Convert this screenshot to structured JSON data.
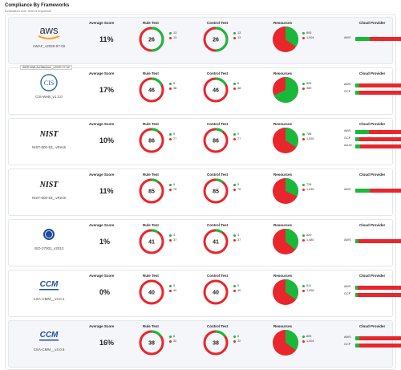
{
  "header": {
    "title": "Compliance By Frameworks",
    "subtitle": "Evaluation over time is important"
  },
  "columns": {
    "avg": "Average Score",
    "rule": "Rule Test",
    "control": "Control Test",
    "resources": "Resources",
    "cloud": "Cloud Provider"
  },
  "tooltip": "AWS-Well-Architected-_v2020-07-02",
  "colors": {
    "pass": "#1ab83a",
    "fail": "#e8262b"
  },
  "frameworks": [
    {
      "logo": "aws",
      "name": "AWAF_v2020-07-02",
      "score": "11%",
      "rule": {
        "total": "26",
        "pass": "13",
        "fail": "13"
      },
      "control": {
        "total": "26",
        "pass": "13",
        "fail": "13"
      },
      "resources": {
        "pass": "805",
        "fail": "1,504",
        "pass_frac": 0.35
      },
      "clouds": [
        {
          "name": "AWS",
          "pass_frac": 0.3
        }
      ]
    },
    {
      "logo": "CIS",
      "name": "CIS-WeB_v1.3.0",
      "score": "17%",
      "rule": {
        "total": "46",
        "pass": "8",
        "fail": "38"
      },
      "control": {
        "total": "46",
        "pass": "8",
        "fail": "38"
      },
      "resources": {
        "pass": "826",
        "fail": "380",
        "pass_frac": 0.68
      },
      "clouds": [
        {
          "name": "AWS",
          "pass_frac": 0.08
        },
        {
          "name": "GCP",
          "pass_frac": 0.08
        }
      ]
    },
    {
      "logo": "NIST",
      "name": "NIST-800-53_.vRev5",
      "score": "10%",
      "rule": {
        "total": "86",
        "pass": "9",
        "fail": "77"
      },
      "control": {
        "total": "86",
        "pass": "9",
        "fail": "77"
      },
      "resources": {
        "pass": "788",
        "fail": "1,525",
        "pass_frac": 0.34
      },
      "clouds": [
        {
          "name": "AWS",
          "pass_frac": 0.28
        },
        {
          "name": "GCP",
          "pass_frac": 0.08
        },
        {
          "name": "Azure",
          "pass_frac": 0.1
        }
      ]
    },
    {
      "logo": "NIST",
      "name": "NIST-800-53_.vRev5",
      "score": "11%",
      "rule": {
        "total": "85",
        "pass": "9",
        "fail": "76"
      },
      "control": {
        "total": "85",
        "pass": "9",
        "fail": "76"
      },
      "resources": {
        "pass": "728",
        "fail": "1,535",
        "pass_frac": 0.32
      },
      "clouds": [
        {
          "name": "AWS",
          "pass_frac": 0.3
        }
      ]
    },
    {
      "logo": "ISO",
      "name": "ISO-27001_v2013",
      "score": "1%",
      "rule": {
        "total": "41",
        "pass": "4",
        "fail": "37"
      },
      "control": {
        "total": "41",
        "pass": "4",
        "fail": "37"
      },
      "resources": {
        "pass": "829",
        "fail": "1,480",
        "pass_frac": 0.36
      },
      "clouds": [
        {
          "name": "AWS",
          "pass_frac": 0.07
        }
      ]
    },
    {
      "logo": "CCM",
      "name": "CSA-CMM__v3.0.1",
      "score": "0%",
      "rule": {
        "total": "40",
        "pass": "0",
        "fail": "40"
      },
      "control": {
        "total": "40",
        "pass": "0",
        "fail": "40"
      },
      "resources": {
        "pass": "811",
        "fail": "1,496",
        "pass_frac": 0.35
      },
      "clouds": [
        {
          "name": "AWS",
          "pass_frac": 0.05
        },
        {
          "name": "GCP",
          "pass_frac": 0.05
        }
      ]
    },
    {
      "logo": "CCM",
      "name": "CSA-CMM__v4.0.5",
      "score": "16%",
      "rule": {
        "total": "38",
        "pass": "6",
        "fail": "32"
      },
      "control": {
        "total": "38",
        "pass": "6",
        "fail": "32"
      },
      "resources": {
        "pass": "805",
        "fail": "1,504",
        "pass_frac": 0.35
      },
      "clouds": [
        {
          "name": "AWS",
          "pass_frac": 0.08
        },
        {
          "name": "GCP",
          "pass_frac": 0.08
        }
      ]
    }
  ]
}
